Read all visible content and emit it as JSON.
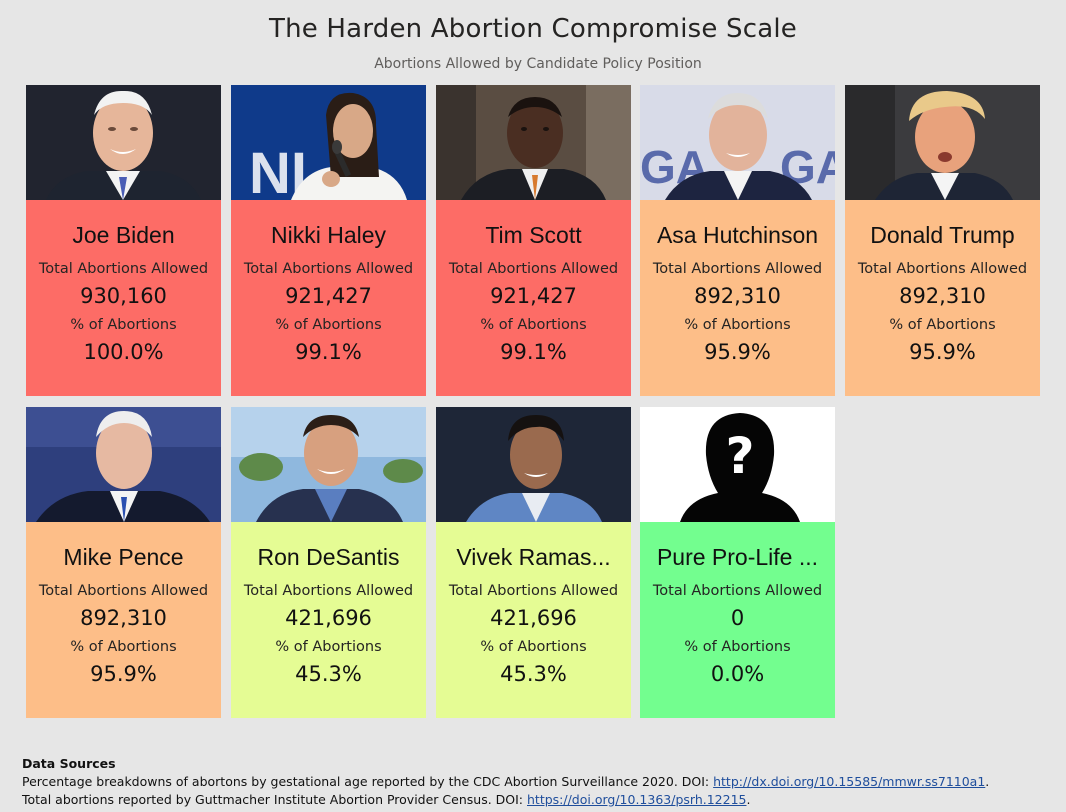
{
  "header": {
    "title": "The Harden Abortion Compromise Scale",
    "subtitle": "Abortions Allowed by Candidate Policy Position"
  },
  "labels": {
    "total": "Total Abortions Allowed",
    "pct": "% of Abortions"
  },
  "colors": {
    "red": "#fd6c66",
    "orange": "#fdbe88",
    "lime": "#e5fc94",
    "green": "#73fe8f",
    "background": "#e6e6e6"
  },
  "candidates": [
    {
      "name": "Joe Biden",
      "total": "930,160",
      "pct": "100.0%",
      "color": "red",
      "photo": "joe-biden-photo"
    },
    {
      "name": "Nikki Haley",
      "total": "921,427",
      "pct": "99.1%",
      "color": "red",
      "photo": "nikki-haley-photo"
    },
    {
      "name": "Tim Scott",
      "total": "921,427",
      "pct": "99.1%",
      "color": "red",
      "photo": "tim-scott-photo"
    },
    {
      "name": "Asa Hutchinson",
      "total": "892,310",
      "pct": "95.9%",
      "color": "orange",
      "photo": "asa-hutchinson-photo"
    },
    {
      "name": "Donald Trump",
      "total": "892,310",
      "pct": "95.9%",
      "color": "orange",
      "photo": "donald-trump-photo"
    },
    {
      "name": "Mike Pence",
      "total": "892,310",
      "pct": "95.9%",
      "color": "orange",
      "photo": "mike-pence-photo"
    },
    {
      "name": "Ron DeSantis",
      "total": "421,696",
      "pct": "45.3%",
      "color": "lime",
      "photo": "ron-desantis-photo"
    },
    {
      "name": "Vivek Ramas...",
      "total": "421,696",
      "pct": "45.3%",
      "color": "lime",
      "photo": "vivek-ramaswamy-photo"
    },
    {
      "name": "Pure Pro-Life ...",
      "total": "0",
      "pct": "0.0%",
      "color": "green",
      "photo": "unknown-silhouette-icon"
    }
  ],
  "footer": {
    "title": "Data Sources",
    "line1_text": "Percentage breakdowns of abortons by gestational age reported by the CDC Abortion Surveillance 2020. DOI: ",
    "line1_link": "http://dx.doi.org/10.15585/mmwr.ss7110a1",
    "line1_end": ".",
    "line2_text": "Total abortions reported by Guttmacher Institute Abortion Provider Census. DOI: ",
    "line2_link": "https://doi.org/10.1363/psrh.12215",
    "line2_end": "."
  }
}
